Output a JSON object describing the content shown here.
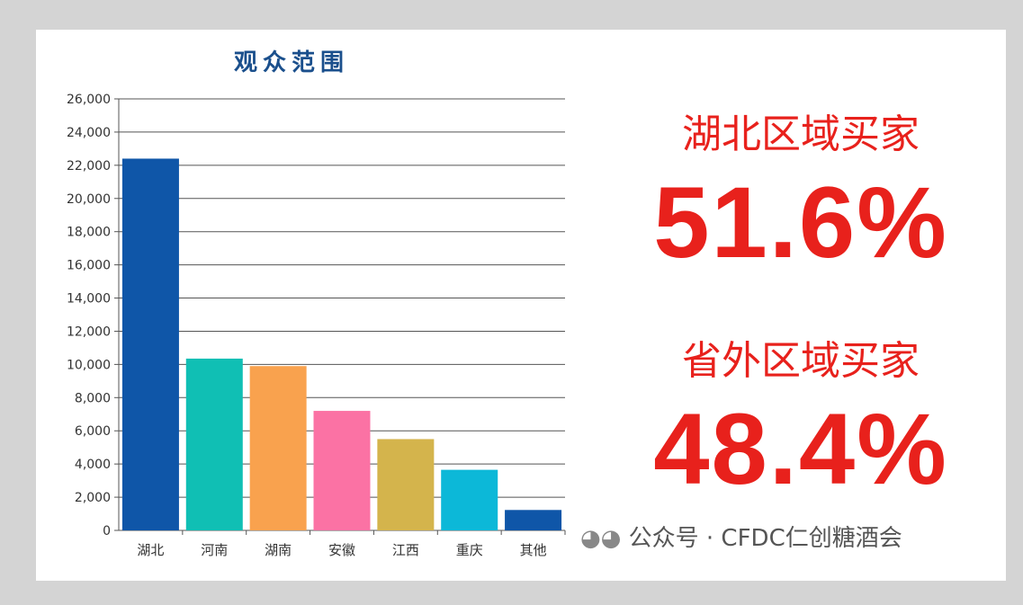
{
  "chart_data": {
    "type": "bar",
    "title": "观众范围",
    "categories": [
      "湖北",
      "河南",
      "湖南",
      "安徽",
      "江西",
      "重庆",
      "其他"
    ],
    "values": [
      22400,
      10350,
      9900,
      7200,
      5500,
      3650,
      1230
    ],
    "colors": [
      "#0f56a8",
      "#10bfb4",
      "#f9a24e",
      "#fb72a4",
      "#d4b44c",
      "#0cb8d8",
      "#0f56a8"
    ],
    "ylim": [
      0,
      26000
    ],
    "yticks": [
      "0",
      "2,000",
      "4,000",
      "6,000",
      "8,000",
      "10,000",
      "12,000",
      "14,000",
      "16,000",
      "18,000",
      "20,000",
      "22,000",
      "24,000",
      "26,000"
    ],
    "grid": true,
    "xlabel": "",
    "ylabel": ""
  },
  "stats": {
    "hubei_label": "湖北区域买家",
    "hubei_value": "51.6%",
    "outside_label": "省外区域买家",
    "outside_value": "48.4%",
    "color": "#e8211c"
  },
  "watermark": "公众号 · CFDC仁创糖酒会"
}
